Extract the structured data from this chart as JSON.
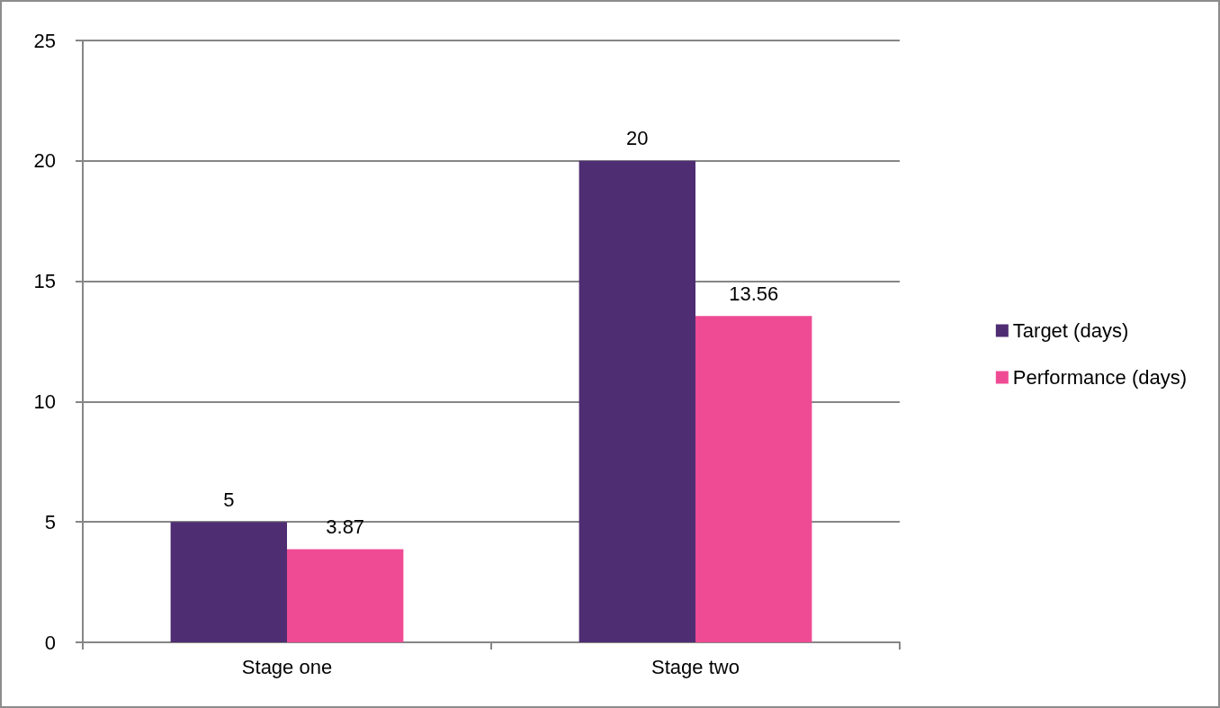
{
  "chart_data": {
    "type": "bar",
    "categories": [
      "Stage one",
      "Stage two"
    ],
    "series": [
      {
        "name": "Target (days)",
        "color": "#4f2d73",
        "values": [
          5,
          20
        ]
      },
      {
        "name": "Performance (days)",
        "color": "#ef4b94",
        "values": [
          3.87,
          13.56
        ]
      }
    ],
    "ylim": [
      0,
      25
    ],
    "yticks": [
      0,
      5,
      10,
      15,
      20,
      25
    ],
    "grid": "y",
    "legend": "right",
    "data_labels": true
  }
}
